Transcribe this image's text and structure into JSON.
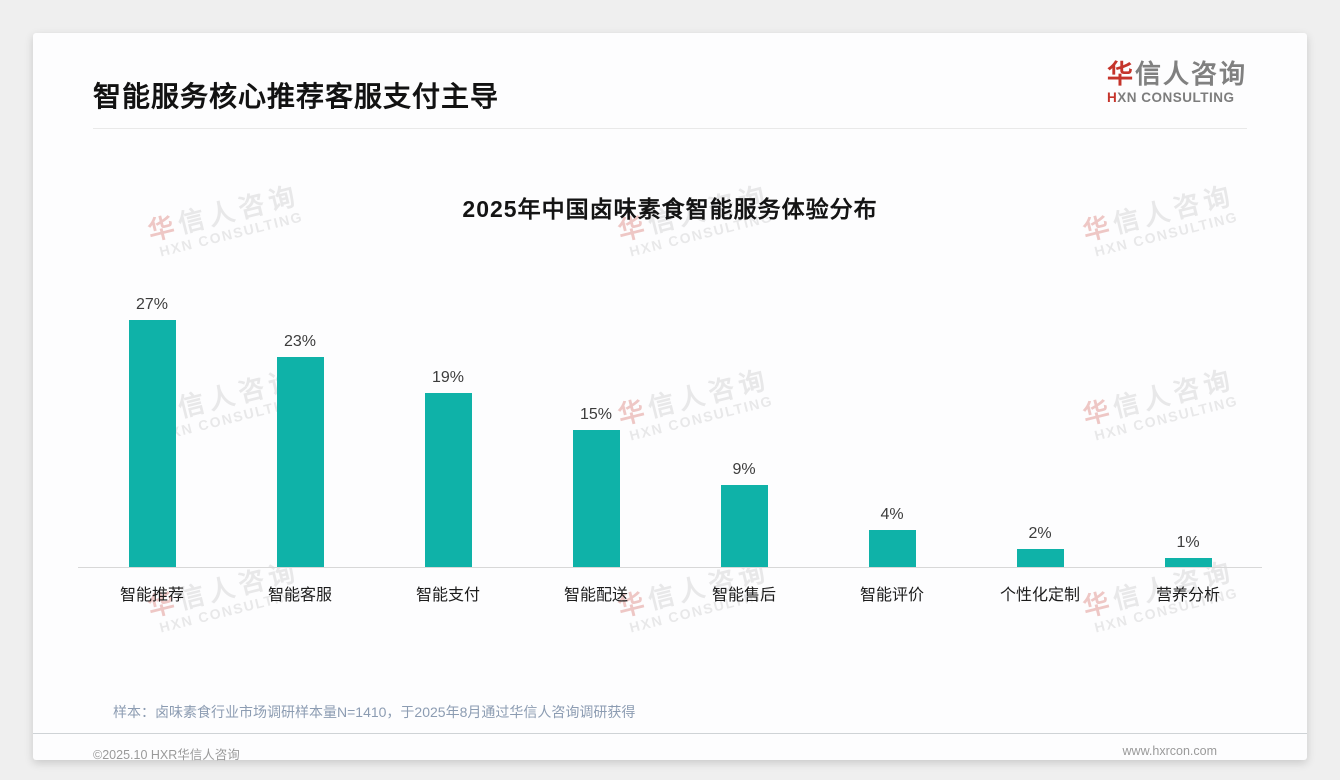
{
  "header": {
    "title": "智能服务核心推荐客服支付主导"
  },
  "logo": {
    "cn_first": "华",
    "cn_rest": "信人咨询",
    "en_first": "H",
    "en_rest": "XN CONSULTING"
  },
  "watermark": {
    "cn_first": "华",
    "cn_rest": "信人咨询",
    "en": "HXN CONSULTING"
  },
  "chart_data": {
    "type": "bar",
    "title": "2025年中国卤味素食智能服务体验分布",
    "categories": [
      "智能推荐",
      "智能客服",
      "智能支付",
      "智能配送",
      "智能售后",
      "智能评价",
      "个性化定制",
      "营养分析"
    ],
    "values": [
      27,
      23,
      19,
      15,
      9,
      4,
      2,
      1
    ],
    "value_labels": [
      "27%",
      "23%",
      "19%",
      "15%",
      "9%",
      "4%",
      "2%",
      "1%"
    ],
    "unit": "%",
    "bar_color": "#0fb2a8",
    "xlabel": "",
    "ylabel": "",
    "ylim": [
      0,
      30
    ],
    "grid": false,
    "legend": false
  },
  "note": "样本：卤味素食行业市场调研样本量N=1410，于2025年8月通过华信人咨询调研获得",
  "footer": {
    "left": "©2025.10 HXR华信人咨询",
    "right": "www.hxrcon.com"
  },
  "colors": {
    "bar_teal": "#0fb2a8",
    "logo_red": "#c5342b",
    "note_text": "#8c9cb2"
  }
}
